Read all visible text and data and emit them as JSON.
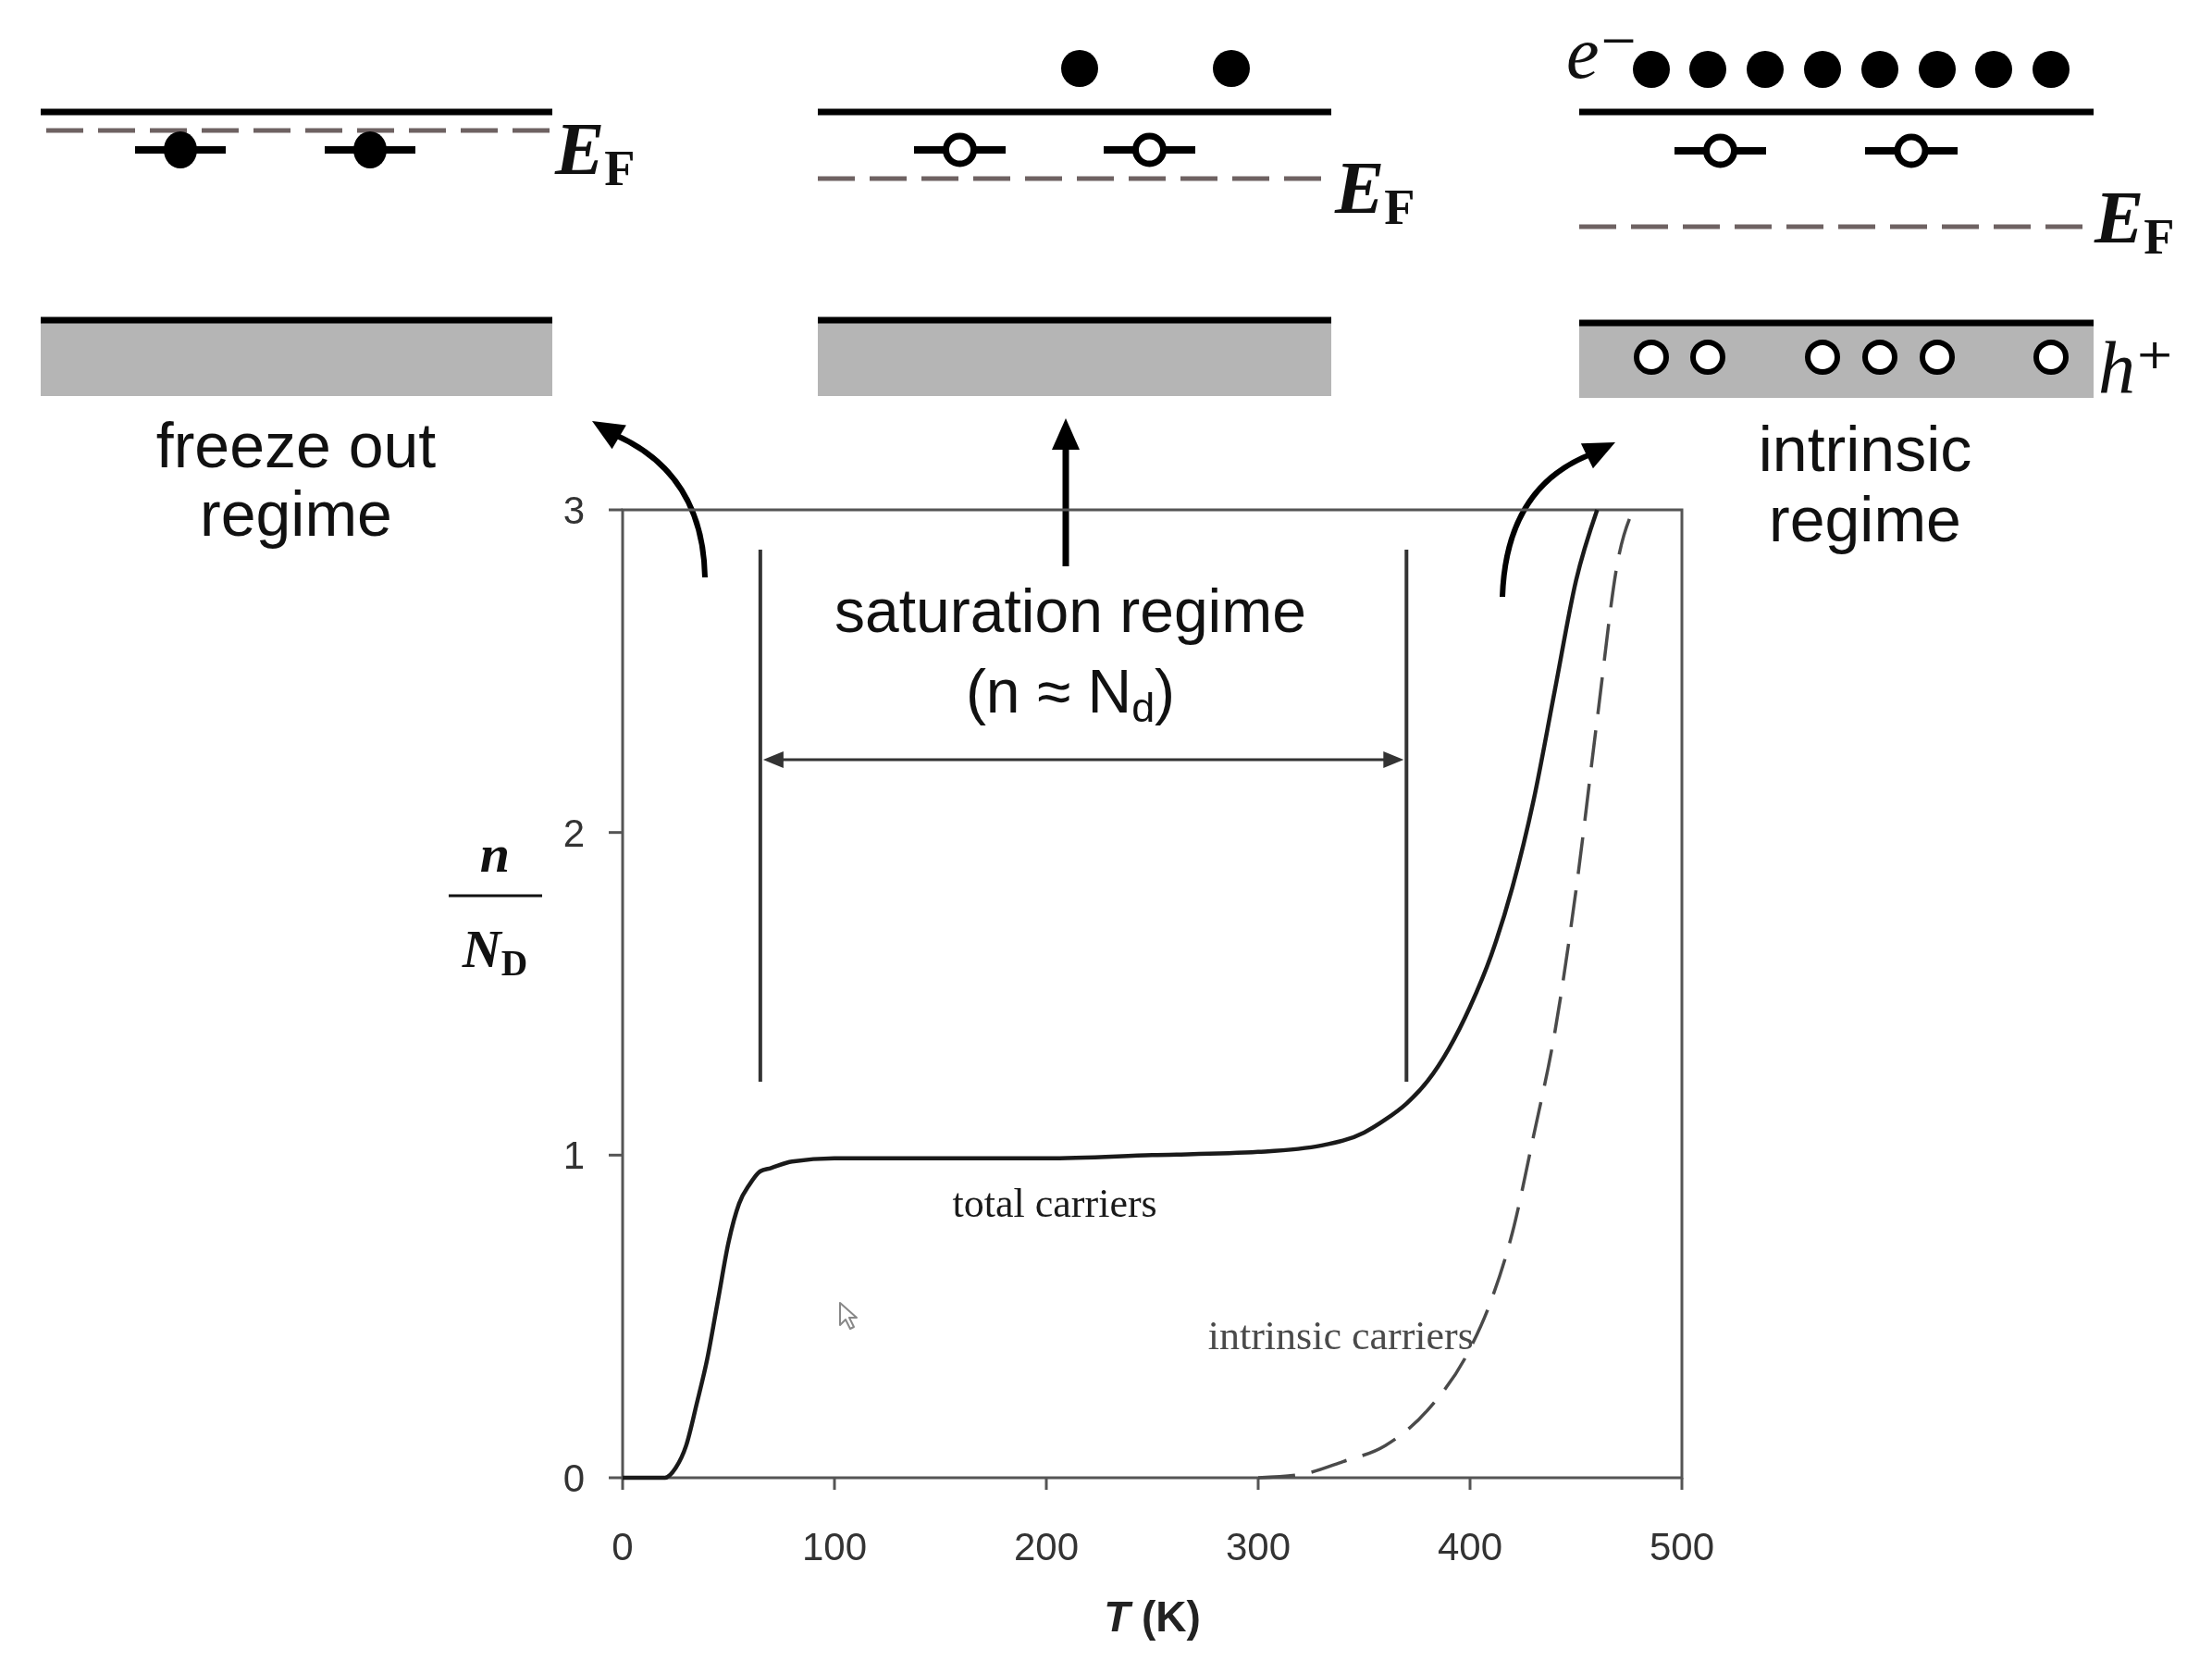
{
  "chart_data": {
    "type": "line",
    "xlabel": "T (K)",
    "ylabel": "n\nN$_{D}$",
    "xlim": [
      0,
      500
    ],
    "xticks": [
      0,
      100,
      200,
      300,
      400,
      500
    ],
    "ylim": [
      0,
      3
    ],
    "yticks": [
      0,
      1,
      2,
      3
    ],
    "series": [
      {
        "name": "total carriers",
        "color": "#1a1a1a",
        "line_style": "solid",
        "x": [
          0,
          20,
          25,
          30,
          35,
          40,
          45,
          50,
          55,
          60,
          65,
          70,
          80,
          100,
          150,
          200,
          250,
          300,
          330,
          350,
          360,
          370,
          380,
          390,
          400,
          410,
          420,
          430,
          440,
          450,
          460
        ],
        "values": [
          0,
          0,
          0.03,
          0.1,
          0.23,
          0.37,
          0.55,
          0.73,
          0.85,
          0.91,
          0.95,
          0.96,
          0.98,
          0.99,
          0.99,
          0.99,
          1.0,
          1.01,
          1.03,
          1.07,
          1.11,
          1.16,
          1.23,
          1.33,
          1.46,
          1.62,
          1.83,
          2.1,
          2.44,
          2.78,
          3.0
        ]
      },
      {
        "name": "intrinsic carriers",
        "color": "#4a4a4a",
        "line_style": "dashed",
        "x": [
          300,
          320,
          340,
          360,
          380,
          400,
          410,
          420,
          430,
          440,
          450,
          460,
          470,
          477
        ],
        "values": [
          0,
          0.01,
          0.05,
          0.1,
          0.21,
          0.4,
          0.55,
          0.76,
          1.06,
          1.38,
          1.82,
          2.35,
          2.85,
          3.0
        ]
      }
    ],
    "ref_lines": [
      {
        "axis": "x",
        "value": 65,
        "color": "#333333"
      },
      {
        "axis": "x",
        "value": 370,
        "color": "#333333"
      }
    ],
    "annotations": [
      "freeze out\nregime",
      "intrinsic\nregime",
      "E$_{F}$",
      "E$_{F}$",
      "E$_{F}$",
      "e⁻",
      "h⁺",
      "saturation regime\n(n ≈ N$_{d}$)"
    ]
  }
}
